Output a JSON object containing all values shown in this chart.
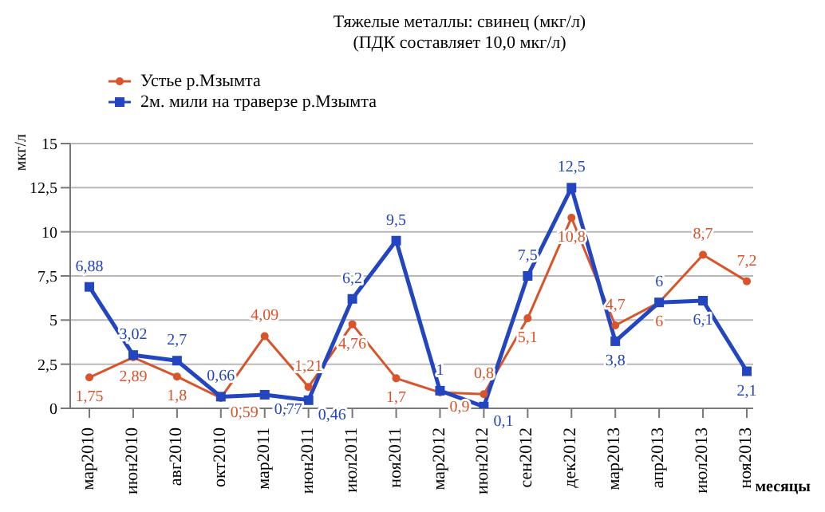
{
  "chart_data": {
    "type": "line",
    "title": "Тяжелые металлы: свинец (мкг/л)",
    "subtitle": "(ПДК составляет 10,0 мкг/л)",
    "xlabel": "месяцы",
    "ylabel": "мкг/л",
    "categories": [
      "мар2010",
      "июн2010",
      "авг2010",
      "окт2010",
      "мар2011",
      "июн2011",
      "июл2011",
      "ноя2011",
      "мар2012",
      "июн2012",
      "сен2012",
      "дек2012",
      "мар2013",
      "апр2013",
      "июл2013",
      "ноя2013"
    ],
    "series": [
      {
        "name": "Устье р.Мзымта",
        "color": "#d9542b",
        "marker": "circle",
        "values": [
          1.75,
          2.89,
          1.8,
          0.59,
          4.09,
          1.21,
          4.76,
          1.7,
          0.9,
          0.8,
          5.1,
          10.8,
          4.7,
          6,
          8.7,
          7.2
        ],
        "value_labels": [
          "1,75",
          "2,89",
          "1,8",
          "0,59",
          "4,09",
          "1,21",
          "4,76",
          "1,7",
          "0,9",
          "0,8",
          "5,1",
          "10,8",
          "4,7",
          "6",
          "8,7",
          "7,2"
        ]
      },
      {
        "name": "2м. мили на траверзе р.Мзымта",
        "color": "#2346c0",
        "marker": "square",
        "values": [
          6.88,
          3.02,
          2.7,
          0.66,
          0.77,
          0.46,
          6.2,
          9.5,
          1,
          0.1,
          7.5,
          12.5,
          3.8,
          6,
          6.1,
          2.1
        ],
        "value_labels": [
          "6,88",
          "3,02",
          "2,7",
          "0,66",
          "0,77",
          "0,46",
          "6,2",
          "9,5",
          "1",
          "0,1",
          "7,5",
          "12,5",
          "3,8",
          "6",
          "6,1",
          "2,1"
        ]
      }
    ],
    "ylim": [
      0,
      15
    ],
    "yticks": [
      0,
      {
        "value": 2.5,
        "label": "2,5"
      },
      5,
      {
        "value": 7.5,
        "label": "7,5"
      },
      10,
      {
        "value": 12.5,
        "label": "12,5"
      },
      15
    ],
    "grid": "y",
    "legend": "top left",
    "line_style": "solid"
  }
}
